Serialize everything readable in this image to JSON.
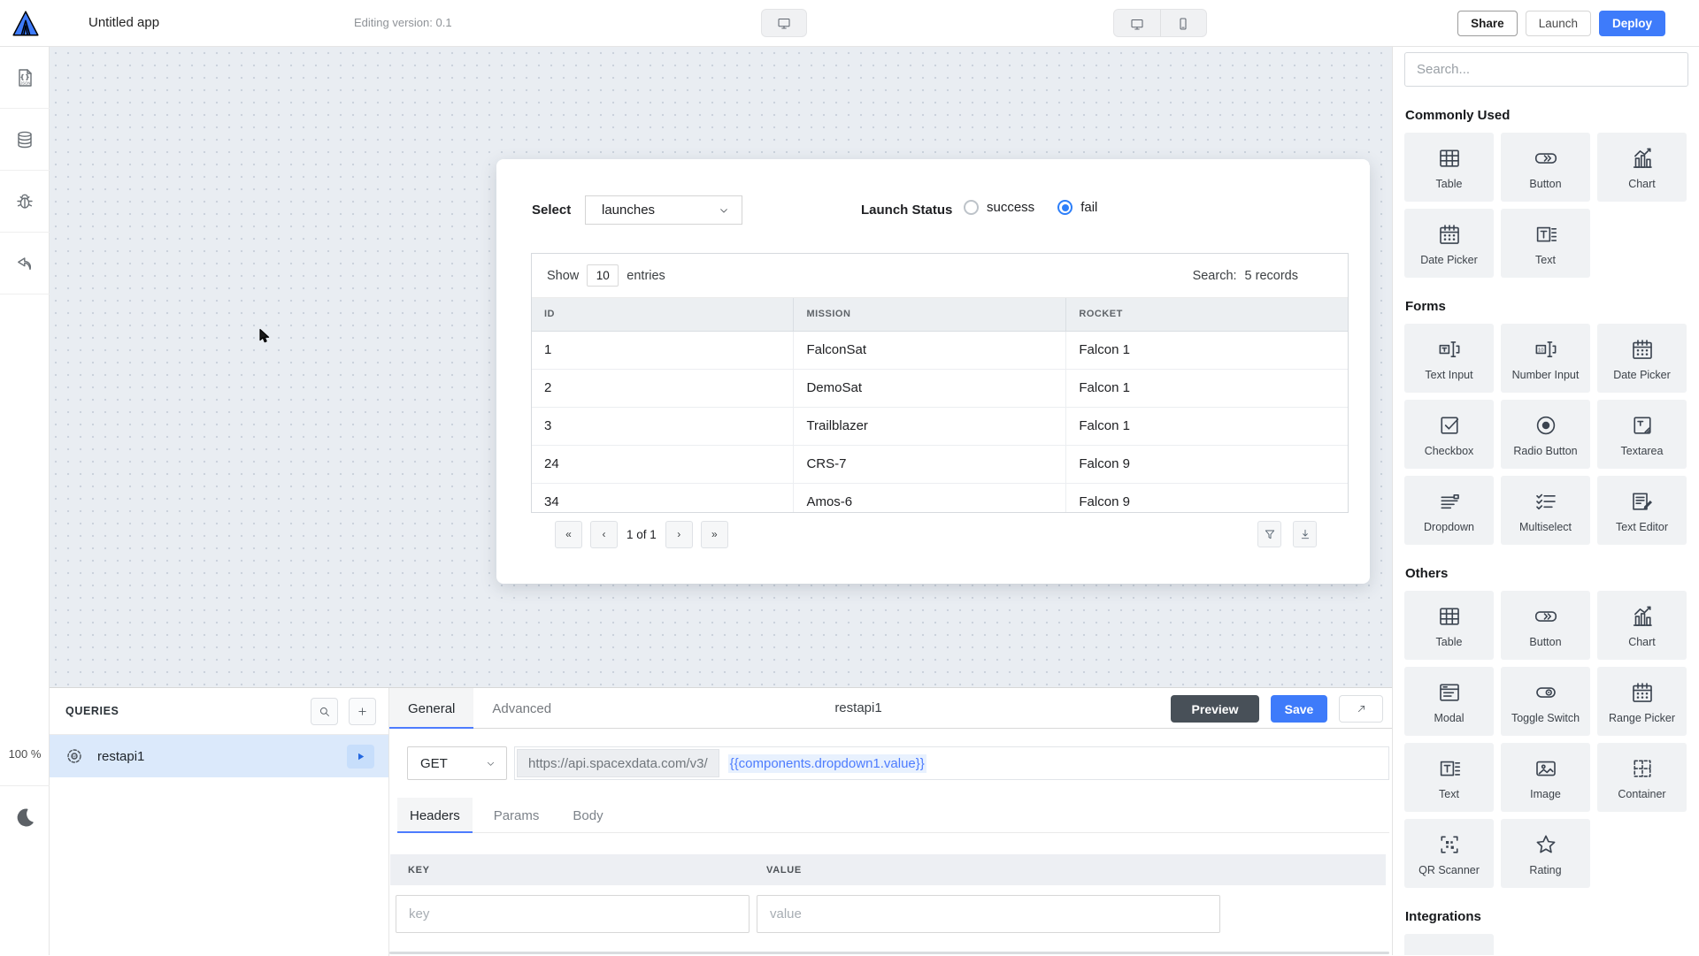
{
  "topbar": {
    "app_title": "Untitled app",
    "version_label": "Editing version: 0.1",
    "share_label": "Share",
    "launch_label": "Launch",
    "deploy_label": "Deploy"
  },
  "left_sidebar": {
    "items": [
      {
        "icon": "json-file"
      },
      {
        "icon": "database"
      },
      {
        "icon": "bug"
      },
      {
        "icon": "undo"
      }
    ],
    "zoom_level": "100 %",
    "theme_icon": "moon"
  },
  "canvas": {
    "select": {
      "label": "Select",
      "value": "launches"
    },
    "launch_status": {
      "label": "Launch Status",
      "options": [
        {
          "label": "success",
          "selected": false
        },
        {
          "label": "fail",
          "selected": true
        }
      ]
    },
    "table": {
      "show_label": "Show",
      "page_size": "10",
      "entries_label": "entries",
      "search_label": "Search:",
      "search_value": "5 records",
      "columns": [
        "ID",
        "MISSION",
        "ROCKET"
      ],
      "rows": [
        [
          "1",
          "FalconSat",
          "Falcon 1"
        ],
        [
          "2",
          "DemoSat",
          "Falcon 1"
        ],
        [
          "3",
          "Trailblazer",
          "Falcon 1"
        ],
        [
          "24",
          "CRS-7",
          "Falcon 9"
        ],
        [
          "34",
          "Amos-6",
          "Falcon 9"
        ]
      ],
      "pagination": {
        "first": "«",
        "prev": "‹",
        "page_info": "1 of 1",
        "next": "›",
        "last": "»"
      }
    }
  },
  "query_panel": {
    "queries_header": "QUERIES",
    "query_list": [
      {
        "name": "restapi1",
        "selected": true
      }
    ],
    "editor": {
      "tabs": [
        {
          "label": "General",
          "active": true
        },
        {
          "label": "Advanced",
          "active": false
        }
      ],
      "title": "restapi1",
      "preview_label": "Preview",
      "save_label": "Save",
      "method": "GET",
      "url_base": "https://api.spacexdata.com/v3/",
      "url_expression": "{{components.dropdown1.value}}",
      "request_tabs": [
        {
          "label": "Headers",
          "active": true
        },
        {
          "label": "Params",
          "active": false
        },
        {
          "label": "Body",
          "active": false
        }
      ],
      "kv_table": {
        "key_header": "KEY",
        "value_header": "VALUE",
        "key_placeholder": "key",
        "value_placeholder": "value"
      }
    }
  },
  "widget_panel": {
    "search_placeholder": "Search...",
    "sections": [
      {
        "title": "Commonly Used",
        "widgets": [
          {
            "label": "Table",
            "icon": "table"
          },
          {
            "label": "Button",
            "icon": "button"
          },
          {
            "label": "Chart",
            "icon": "chart"
          },
          {
            "label": "Date Picker",
            "icon": "calendar"
          },
          {
            "label": "Text",
            "icon": "text"
          }
        ]
      },
      {
        "title": "Forms",
        "widgets": [
          {
            "label": "Text Input",
            "icon": "text-input"
          },
          {
            "label": "Number Input",
            "icon": "number-input"
          },
          {
            "label": "Date Picker",
            "icon": "calendar"
          },
          {
            "label": "Checkbox",
            "icon": "checkbox"
          },
          {
            "label": "Radio Button",
            "icon": "radio"
          },
          {
            "label": "Textarea",
            "icon": "textarea"
          },
          {
            "label": "Dropdown",
            "icon": "dropdown"
          },
          {
            "label": "Multiselect",
            "icon": "multiselect"
          },
          {
            "label": "Text Editor",
            "icon": "text-editor"
          }
        ]
      },
      {
        "title": "Others",
        "widgets": [
          {
            "label": "Table",
            "icon": "table"
          },
          {
            "label": "Button",
            "icon": "button"
          },
          {
            "label": "Chart",
            "icon": "chart"
          },
          {
            "label": "Modal",
            "icon": "modal"
          },
          {
            "label": "Toggle Switch",
            "icon": "toggle"
          },
          {
            "label": "Range Picker",
            "icon": "calendar"
          },
          {
            "label": "Text",
            "icon": "text"
          },
          {
            "label": "Image",
            "icon": "image"
          },
          {
            "label": "Container",
            "icon": "container"
          },
          {
            "label": "QR Scanner",
            "icon": "qr"
          },
          {
            "label": "Rating",
            "icon": "star"
          }
        ]
      },
      {
        "title": "Integrations",
        "widgets": [
          {
            "label": "",
            "icon": "map"
          }
        ]
      }
    ]
  },
  "colors": {
    "primary_blue": "#3e7bfa",
    "expression_blue": "#4d7cfe",
    "dark_button": "#485058",
    "selected_query_row": "#dbe9fb",
    "table_header_bg": "#eceff2",
    "canvas_bg": "#e9edf2",
    "radio_selected": "#2d7ff9"
  }
}
